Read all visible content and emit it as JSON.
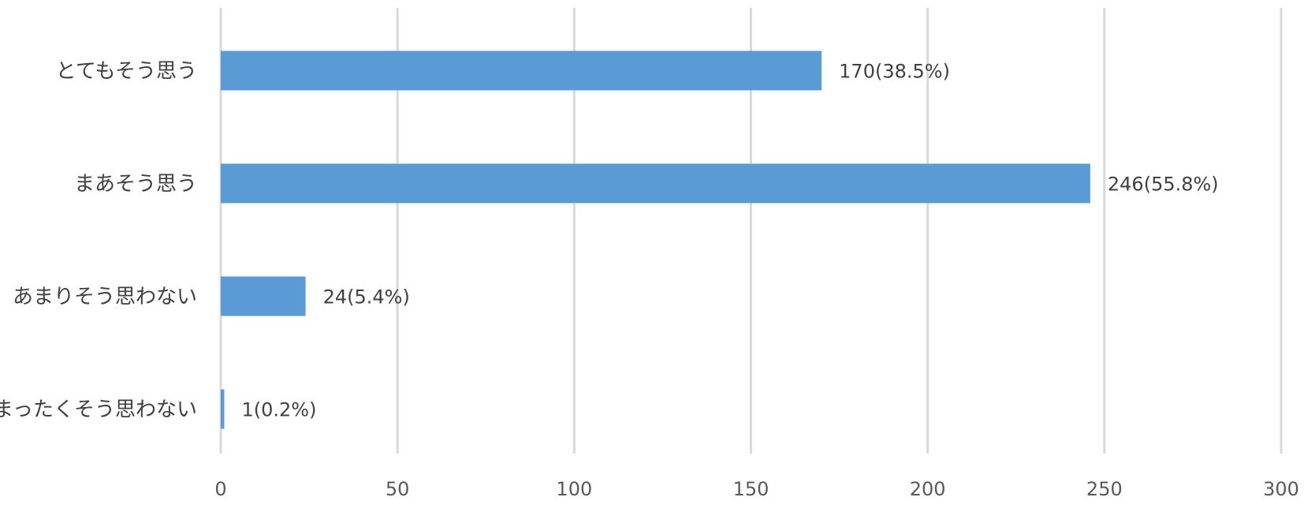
{
  "chart_data": {
    "type": "bar",
    "orientation": "horizontal",
    "categories": [
      "とてもそう思う",
      "まあそう思う",
      "あまりそう思わない",
      "まったくそう思わない"
    ],
    "values": [
      170,
      246,
      24,
      1
    ],
    "data_labels": [
      "170(38.5%)",
      "246(55.8%)",
      "24(5.4%)",
      "1(0.2%)"
    ],
    "xlim": [
      0,
      300
    ],
    "x_ticks": [
      0,
      50,
      100,
      150,
      200,
      250,
      300
    ],
    "x_tick_labels": [
      "0",
      "50",
      "100",
      "150",
      "200",
      "250",
      "300"
    ],
    "grid": "vertical",
    "legend": "none",
    "bar_color": "#5b9bd5",
    "grid_color": "#d9d9d9",
    "title": "",
    "xlabel": "",
    "ylabel": ""
  }
}
